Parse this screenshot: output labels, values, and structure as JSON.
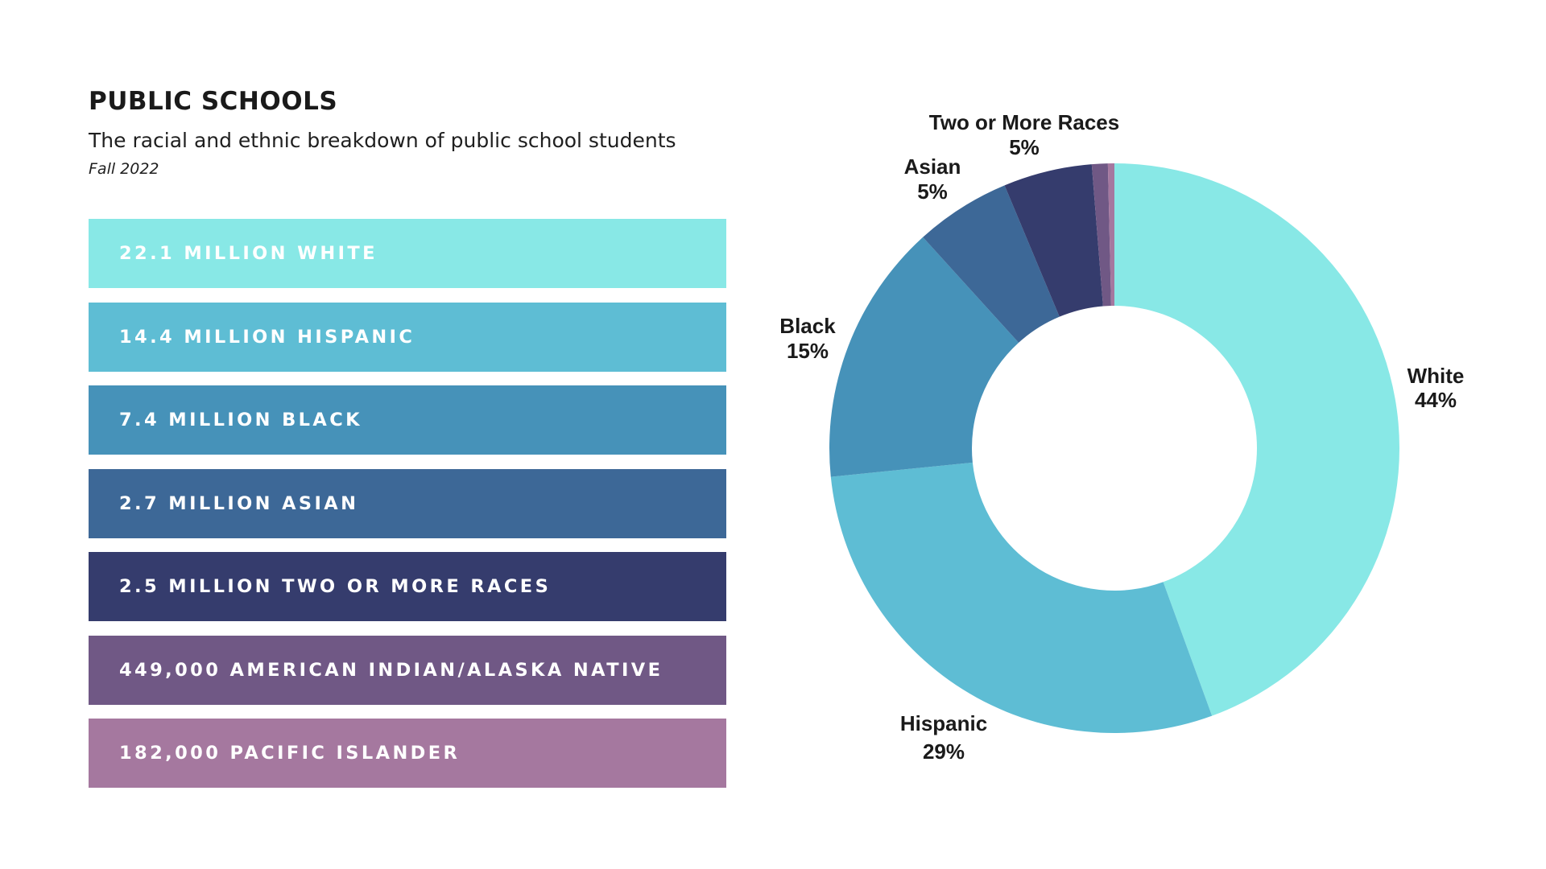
{
  "header": {
    "title": "PUBLIC SCHOOLS",
    "subtitle": "The racial and ethnic breakdown of public school students",
    "date": "Fall 2022"
  },
  "legend": [
    {
      "text": "22.1 MILLION WHITE",
      "color": "#88e8e6"
    },
    {
      "text": "14.4 MILLION HISPANIC",
      "color": "#5ebdd4"
    },
    {
      "text": "7.4 MILLION BLACK",
      "color": "#4692b9"
    },
    {
      "text": "2.7 MILLION ASIAN",
      "color": "#3d6897"
    },
    {
      "text": "2.5 MILLION TWO OR MORE RACES",
      "color": "#353c6d"
    },
    {
      "text": "449,000 AMERICAN INDIAN/ALASKA NATIVE",
      "color": "#705885"
    },
    {
      "text": "182,000 PACIFIC ISLANDER",
      "color": "#a5789f"
    }
  ],
  "chart_data": {
    "type": "pie",
    "donut": true,
    "categories": [
      "White",
      "Hispanic",
      "Black",
      "Asian",
      "Two or More Races",
      "American Indian/Alaska Native",
      "Pacific Islander"
    ],
    "values": [
      22.1,
      14.4,
      7.4,
      2.7,
      2.5,
      0.449,
      0.182
    ],
    "value_unit": "million",
    "colors": [
      "#88e8e6",
      "#5ebdd4",
      "#4692b9",
      "#3d6897",
      "#353c6d",
      "#705885",
      "#a5789f"
    ],
    "slice_labels": [
      {
        "name": "White",
        "pct": "44%"
      },
      {
        "name": "Hispanic",
        "pct": "29%"
      },
      {
        "name": "Black",
        "pct": "15%"
      },
      {
        "name": "Asian",
        "pct": "5%"
      },
      {
        "name": "Two or More Races",
        "pct": "5%"
      },
      {
        "name": "",
        "pct": ""
      },
      {
        "name": "",
        "pct": ""
      }
    ],
    "title": "",
    "legend": "left"
  }
}
